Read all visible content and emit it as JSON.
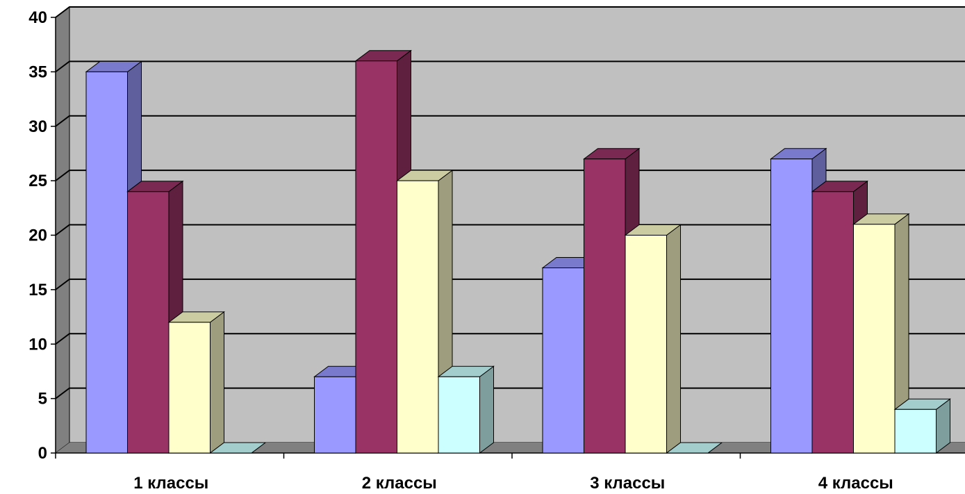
{
  "chart_data": {
    "type": "bar",
    "categories": [
      "1 классы",
      "2 классы",
      "3 классы",
      "4 классы"
    ],
    "series": [
      {
        "values": [
          35,
          7,
          17,
          27
        ],
        "color": "#9999ff"
      },
      {
        "values": [
          24,
          36,
          27,
          24
        ],
        "color": "#993366"
      },
      {
        "values": [
          12,
          25,
          20,
          21
        ],
        "color": "#ffffcc"
      },
      {
        "values": [
          0,
          7,
          0,
          4
        ],
        "color": "#ccffff"
      }
    ],
    "y_ticks": [
      "0",
      "5",
      "10",
      "15",
      "20",
      "25",
      "30",
      "35",
      "40"
    ],
    "ylim": [
      0,
      40
    ],
    "grid": true,
    "style": "3d-clustered-column",
    "wall_color": "#c0c0c0"
  }
}
